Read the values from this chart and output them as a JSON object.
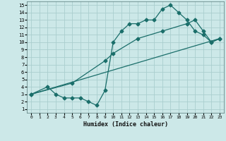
{
  "background_color": "#cce8e8",
  "grid_color": "#aacece",
  "line_color": "#1a6e6a",
  "xlabel": "Humidex (Indice chaleur)",
  "xlim": [
    -0.5,
    23.5
  ],
  "ylim": [
    0.5,
    15.5
  ],
  "xticks": [
    0,
    1,
    2,
    3,
    4,
    5,
    6,
    7,
    8,
    9,
    10,
    11,
    12,
    13,
    14,
    15,
    16,
    17,
    18,
    19,
    20,
    21,
    22,
    23
  ],
  "yticks": [
    1,
    2,
    3,
    4,
    5,
    6,
    7,
    8,
    9,
    10,
    11,
    12,
    13,
    14,
    15
  ],
  "line1_x": [
    0,
    2,
    3,
    4,
    5,
    6,
    7,
    8,
    9,
    10,
    11,
    12,
    13,
    14,
    15,
    16,
    17,
    18,
    19,
    20,
    21,
    22,
    23
  ],
  "line1_y": [
    3,
    4,
    3,
    2.5,
    2.5,
    2.5,
    2,
    1.5,
    3.5,
    10,
    11.5,
    12.5,
    12.5,
    13,
    13,
    14.5,
    15,
    14,
    13,
    11.5,
    11,
    10,
    10.5
  ],
  "line2_x": [
    0,
    5,
    9,
    10,
    13,
    16,
    19,
    20,
    21,
    22,
    23
  ],
  "line2_y": [
    3,
    4.5,
    7.5,
    8.5,
    10.5,
    11.5,
    12.5,
    13,
    11.5,
    10,
    10.5
  ],
  "line3_x": [
    0,
    23
  ],
  "line3_y": [
    3,
    10.5
  ],
  "marker": "D",
  "markersize": 2.5,
  "linewidth": 0.9
}
